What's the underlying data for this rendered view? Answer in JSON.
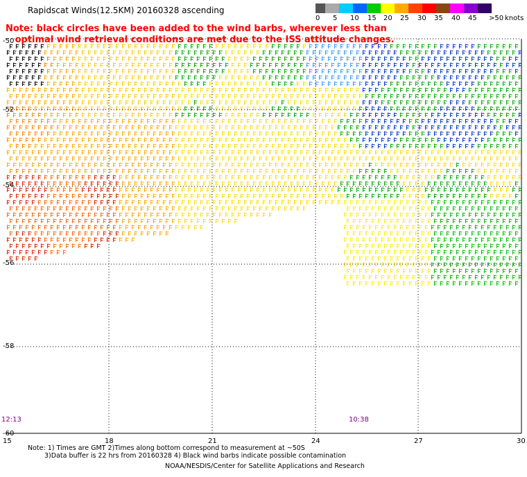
{
  "title": "Rapidscat Winds(12.5KM)  20160328  ascending",
  "note_line1": "Note: black circles have been added to the wind barbs, wherever less than",
  "note_line2": "   optimal wind retrieval conditions are met due to the ISS attitude changes.",
  "legend": {
    "unit": "knots",
    "labels": [
      "0",
      "5",
      "10",
      "15",
      "20",
      "25",
      "30",
      "35",
      "40",
      "45",
      ">50"
    ],
    "colors": [
      "#555555",
      "#aaaaaa",
      "#00ccff",
      "#0066ff",
      "#00cc00",
      "#ffff00",
      "#ffaa00",
      "#ff4400",
      "#ff0000",
      "#8b4513",
      "#ff00ff",
      "#8800cc",
      "#330066"
    ]
  },
  "lat_labels": [
    "-50",
    "-52",
    "-54",
    "-56",
    "-58",
    "-60"
  ],
  "lon_labels": [
    "15",
    "18",
    "21",
    "24",
    "27",
    "30"
  ],
  "times": [
    "12:13",
    "10:38"
  ],
  "footer": {
    "line1": "Note: 1) Times are GMT 2)Times along bottom correspond to measurement at ~50S",
    "line2": "3)Data buffer is 22 hrs from 20160328 4) Black wind barbs indicate possible contamination",
    "line3": "NOAA/NESDIS/Center for Satellite Applications and Research"
  }
}
